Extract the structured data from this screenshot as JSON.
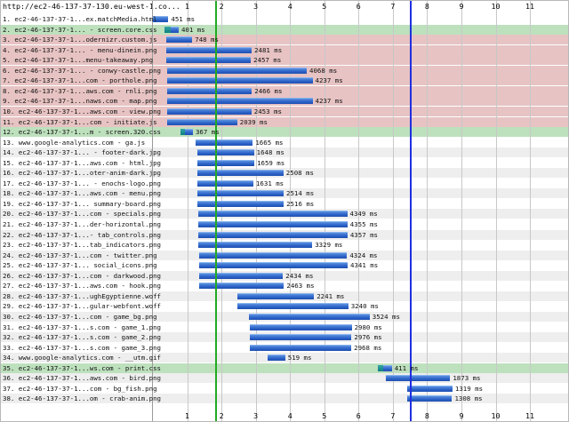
{
  "page_url": "http://ec2-46-137-37-130.eu-west-1.co...",
  "axis": {
    "min": 0,
    "max": 12,
    "ticks": [
      1,
      2,
      3,
      4,
      5,
      6,
      7,
      8,
      9,
      10,
      11
    ]
  },
  "markers": [
    {
      "name": "start-render-line",
      "seconds": 1.85,
      "color": "#22aa22"
    },
    {
      "name": "document-complete-line",
      "seconds": 7.52,
      "color": "#1f2fe0"
    }
  ],
  "colors": {
    "even_row": "#ffffff",
    "odd_row": "#eeeeee",
    "css_row": "#bde0bd",
    "blocking_row": "#e7c3c3",
    "bar": "#2d64c9",
    "css_bar": "#138b8b"
  },
  "requests": [
    {
      "n": 1,
      "label": "1. ec2-46-137-37-1...ex.matchMedia.html",
      "start": 0,
      "dur": 451,
      "kind": "normal",
      "highlight": "none"
    },
    {
      "n": 2,
      "label": "2. ec2-46-137-37-1... - screen.core.css",
      "start": 0.35,
      "dur": 401,
      "kind": "css",
      "highlight": "css"
    },
    {
      "n": 3,
      "label": "3. ec2-46-137-37-1...odernizr.custom.js",
      "start": 0.4,
      "dur": 748,
      "kind": "normal",
      "highlight": "block"
    },
    {
      "n": 4,
      "label": "4. ec2-46-137-37-1... - menu-dinein.png",
      "start": 0.4,
      "dur": 2481,
      "kind": "normal",
      "highlight": "block"
    },
    {
      "n": 5,
      "label": "5. ec2-46-137-37-1...menu-takeaway.png",
      "start": 0.4,
      "dur": 2457,
      "kind": "normal",
      "highlight": "block"
    },
    {
      "n": 6,
      "label": "6. ec2-46-137-37-1... - conwy-castle.png",
      "start": 0.42,
      "dur": 4068,
      "kind": "normal",
      "highlight": "block"
    },
    {
      "n": 7,
      "label": "7. ec2-46-137-37-1...com - porthole.png",
      "start": 0.42,
      "dur": 4237,
      "kind": "normal",
      "highlight": "block"
    },
    {
      "n": 8,
      "label": "8. ec2-46-137-37-1...aws.com - rnli.png",
      "start": 0.42,
      "dur": 2466,
      "kind": "normal",
      "highlight": "block"
    },
    {
      "n": 9,
      "label": "9. ec2-46-137-37-1...naws.com - map.png",
      "start": 0.42,
      "dur": 4237,
      "kind": "normal",
      "highlight": "block"
    },
    {
      "n": 10,
      "label": "10. ec2-46-137-37-1...aws.com - view.png",
      "start": 0.42,
      "dur": 2453,
      "kind": "normal",
      "highlight": "block"
    },
    {
      "n": 11,
      "label": "11. ec2-46-137-37-1...com - initiate.js",
      "start": 0.42,
      "dur": 2039,
      "kind": "normal",
      "highlight": "block"
    },
    {
      "n": 12,
      "label": "12. ec2-46-137-37-1...m - screen.320.css",
      "start": 0.8,
      "dur": 367,
      "kind": "css",
      "highlight": "css"
    },
    {
      "n": 13,
      "label": "13. www.google-analytics.com - ga.js",
      "start": 1.25,
      "dur": 1665,
      "kind": "normal",
      "highlight": "none"
    },
    {
      "n": 14,
      "label": "14. ec2-46-137-37-1... - footer-dark.jpg",
      "start": 1.3,
      "dur": 1648,
      "kind": "normal",
      "highlight": "none"
    },
    {
      "n": 15,
      "label": "15. ec2-46-137-37-1...aws.com - html.jpg",
      "start": 1.3,
      "dur": 1659,
      "kind": "normal",
      "highlight": "none"
    },
    {
      "n": 16,
      "label": "16. ec2-46-137-37-1...oter-anim-dark.jpg",
      "start": 1.3,
      "dur": 2508,
      "kind": "normal",
      "highlight": "none"
    },
    {
      "n": 17,
      "label": "17. ec2-46-137-37-1... - enochs-logo.png",
      "start": 1.3,
      "dur": 1631,
      "kind": "normal",
      "highlight": "none"
    },
    {
      "n": 18,
      "label": "18. ec2-46-137-37-1...aws.com - menu.png",
      "start": 1.3,
      "dur": 2514,
      "kind": "normal",
      "highlight": "none"
    },
    {
      "n": 19,
      "label": "19. ec2-46-137-37-1... summary-board.png",
      "start": 1.3,
      "dur": 2516,
      "kind": "normal",
      "highlight": "none"
    },
    {
      "n": 20,
      "label": "20. ec2-46-137-37-1...com - specials.png",
      "start": 1.32,
      "dur": 4349,
      "kind": "normal",
      "highlight": "none"
    },
    {
      "n": 21,
      "label": "21. ec2-46-137-37-1...der-horizontal.png",
      "start": 1.32,
      "dur": 4355,
      "kind": "normal",
      "highlight": "none"
    },
    {
      "n": 22,
      "label": "22. ec2-46-137-37-1...- tab_controls.png",
      "start": 1.32,
      "dur": 4357,
      "kind": "normal",
      "highlight": "none"
    },
    {
      "n": 23,
      "label": "23. ec2-46-137-37-1...tab_indicators.png",
      "start": 1.32,
      "dur": 3329,
      "kind": "normal",
      "highlight": "none"
    },
    {
      "n": 24,
      "label": "24. ec2-46-137-37-1...com - twitter.png",
      "start": 1.34,
      "dur": 4324,
      "kind": "normal",
      "highlight": "none"
    },
    {
      "n": 25,
      "label": "25. ec2-46-137-37-1... social_icons.png",
      "start": 1.34,
      "dur": 4341,
      "kind": "normal",
      "highlight": "none"
    },
    {
      "n": 26,
      "label": "26. ec2-46-137-37-1...com - darkwood.png",
      "start": 1.36,
      "dur": 2434,
      "kind": "normal",
      "highlight": "none"
    },
    {
      "n": 27,
      "label": "27. ec2-46-137-37-1...aws.com - hook.png",
      "start": 1.36,
      "dur": 2463,
      "kind": "normal",
      "highlight": "none"
    },
    {
      "n": 28,
      "label": "28. ec2-46-137-37-1...ughEgyptienne.woff",
      "start": 2.46,
      "dur": 2241,
      "kind": "normal",
      "highlight": "none"
    },
    {
      "n": 29,
      "label": "29. ec2-46-137-37-1...gular-webfont.woff",
      "start": 2.46,
      "dur": 3240,
      "kind": "normal",
      "highlight": "none"
    },
    {
      "n": 30,
      "label": "30. ec2-46-137-37-1...com - game_bg.png",
      "start": 2.8,
      "dur": 3524,
      "kind": "normal",
      "highlight": "none"
    },
    {
      "n": 31,
      "label": "31. ec2-46-137-37-1...s.com - game_1.png",
      "start": 2.82,
      "dur": 2980,
      "kind": "normal",
      "highlight": "none"
    },
    {
      "n": 32,
      "label": "32. ec2-46-137-37-1...s.com - game_2.png",
      "start": 2.82,
      "dur": 2976,
      "kind": "normal",
      "highlight": "none"
    },
    {
      "n": 33,
      "label": "33. ec2-46-137-37-1...s.com - game_3.png",
      "start": 2.82,
      "dur": 2968,
      "kind": "normal",
      "highlight": "none"
    },
    {
      "n": 34,
      "label": "34. www.google-analytics.com - __utm.gif",
      "start": 3.34,
      "dur": 519,
      "kind": "normal",
      "highlight": "none"
    },
    {
      "n": 35,
      "label": "35. ec2-46-137-37-1...ws.com - print.css",
      "start": 6.56,
      "dur": 411,
      "kind": "css",
      "highlight": "css"
    },
    {
      "n": 36,
      "label": "36. ec2-46-137-37-1...aws.com - bird.png",
      "start": 6.8,
      "dur": 1873,
      "kind": "normal",
      "highlight": "none"
    },
    {
      "n": 37,
      "label": "37. ec2-46-137-37-1...com - bg_fish.png",
      "start": 7.42,
      "dur": 1319,
      "kind": "normal",
      "highlight": "none"
    },
    {
      "n": 38,
      "label": "38. ec2-46-137-37-1...om - crab-anim.png",
      "start": 7.42,
      "dur": 1308,
      "kind": "normal",
      "highlight": "none"
    }
  ]
}
